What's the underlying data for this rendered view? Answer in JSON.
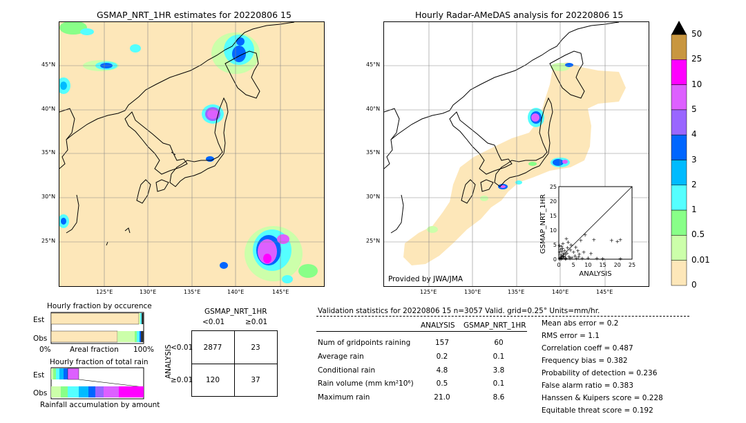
{
  "left_map": {
    "title": "GSMAP_NRT_1HR estimates for 20220806 15",
    "lat_labels": [
      "45°N",
      "40°N",
      "35°N",
      "30°N",
      "25°N"
    ],
    "lon_labels": [
      "125°E",
      "130°E",
      "135°E",
      "140°E",
      "145°E"
    ]
  },
  "right_map": {
    "title": "Hourly Radar-AMeDAS analysis for 20220806 15",
    "lat_labels": [
      "45°N",
      "40°N",
      "35°N",
      "30°N",
      "25°N"
    ],
    "lon_labels": [
      "125°E",
      "130°E",
      "135°E",
      "140°E",
      "145°E"
    ],
    "credit": "Provided by JWA/JMA"
  },
  "colorbar": {
    "labels": [
      "50",
      "25",
      "10",
      "5",
      "4",
      "3",
      "2",
      "1",
      "0.5",
      "0.01",
      "0"
    ],
    "colors": [
      "#c89640",
      "#ff00ff",
      "#dd60ff",
      "#9966ff",
      "#0066ff",
      "#00bbff",
      "#55ffff",
      "#88ff88",
      "#ccffaa",
      "#fde7b9"
    ],
    "top_color": "#000000"
  },
  "chart_data": [
    {
      "type": "scatter",
      "xlabel": "ANALYSIS",
      "ylabel": "GSMAP_NRT_1HR",
      "xlim": [
        0,
        25
      ],
      "ylim": [
        0,
        25
      ],
      "x_ticks": [
        "0",
        "5",
        "10",
        "15",
        "20",
        "25"
      ],
      "y_ticks": [
        "0",
        "5",
        "10",
        "15",
        "20",
        "25"
      ],
      "points": [
        [
          0.2,
          0.1
        ],
        [
          0.5,
          0.3
        ],
        [
          0.8,
          0.2
        ],
        [
          1.0,
          1.2
        ],
        [
          1.2,
          0.5
        ],
        [
          1.5,
          2.0
        ],
        [
          1.8,
          0.8
        ],
        [
          2.0,
          3.0
        ],
        [
          2.2,
          1.5
        ],
        [
          2.5,
          0.4
        ],
        [
          0.3,
          2.5
        ],
        [
          0.6,
          3.5
        ],
        [
          0.9,
          4.5
        ],
        [
          1.1,
          2.8
        ],
        [
          1.4,
          5.5
        ],
        [
          2.8,
          2.2
        ],
        [
          3.0,
          4.0
        ],
        [
          3.5,
          1.0
        ],
        [
          4.0,
          3.2
        ],
        [
          4.5,
          0.6
        ],
        [
          5.0,
          2.5
        ],
        [
          5.5,
          1.2
        ],
        [
          6.0,
          0.3
        ],
        [
          6.5,
          3.0
        ],
        [
          7.0,
          1.8
        ],
        [
          7.5,
          6.5
        ],
        [
          8.0,
          0.4
        ],
        [
          9.0,
          8.5
        ],
        [
          10.0,
          0.5
        ],
        [
          11.0,
          2.0
        ],
        [
          12.0,
          6.8
        ],
        [
          13.0,
          0.3
        ],
        [
          15.0,
          0.2
        ],
        [
          18.0,
          6.5
        ],
        [
          20.0,
          6.2
        ],
        [
          21.0,
          6.8
        ],
        [
          21.0,
          0.2
        ],
        [
          3.2,
          6.0
        ],
        [
          2.6,
          7.2
        ],
        [
          4.2,
          5.0
        ],
        [
          0.4,
          0.6
        ],
        [
          0.7,
          1.5
        ],
        [
          1.6,
          1.0
        ],
        [
          2.3,
          0.2
        ],
        [
          3.8,
          0.3
        ],
        [
          5.8,
          4.2
        ],
        [
          6.8,
          0.8
        ],
        [
          8.5,
          2.5
        ],
        [
          1.3,
          3.8
        ],
        [
          0.2,
          4.8
        ]
      ]
    },
    {
      "type": "bar",
      "title": "Hourly fraction by occurence",
      "categories": [
        "Est",
        "Obs"
      ],
      "xlabel": "Areal fraction",
      "x_ticks": [
        "0%",
        "100%"
      ]
    },
    {
      "type": "bar",
      "title": "Hourly fraction of total rain",
      "categories": [
        "Est",
        "Obs"
      ],
      "xlabel": "Rainfall accumulation by amount"
    },
    {
      "type": "table",
      "title": "GSMAP_NRT_1HR",
      "col_headers": [
        "<0.01",
        "≥0.01"
      ],
      "row_axis_label": "ANALYSIS",
      "row_headers": [
        "<0.01",
        "≥0.01"
      ],
      "cells": [
        [
          "2877",
          "23"
        ],
        [
          "120",
          "37"
        ]
      ]
    }
  ],
  "validation": {
    "header": "Validation statistics for 20220806 15  n=3057 Valid. grid=0.25° Units=mm/hr.",
    "col_analysis": "ANALYSIS",
    "col_gsmap": "GSMAP_NRT_1HR",
    "rows": [
      {
        "label": "Num of gridpoints raining",
        "a": "157",
        "g": "60"
      },
      {
        "label": "Average rain",
        "a": "0.2",
        "g": "0.1"
      },
      {
        "label": "Conditional rain",
        "a": "4.8",
        "g": "3.8"
      },
      {
        "label": "Rain volume (mm km²10⁶)",
        "a": "0.5",
        "g": "0.1"
      },
      {
        "label": "Maximum rain",
        "a": "21.0",
        "g": "8.6"
      }
    ],
    "right": [
      "Mean abs error =    0.2",
      "RMS error =    1.1",
      "Correlation coeff =  0.487",
      "Frequency bias =  0.382",
      "Probability of detection =  0.236",
      "False alarm ratio =  0.383",
      "Hanssen & Kuipers score =  0.228",
      "Equitable threat score =  0.192"
    ]
  }
}
